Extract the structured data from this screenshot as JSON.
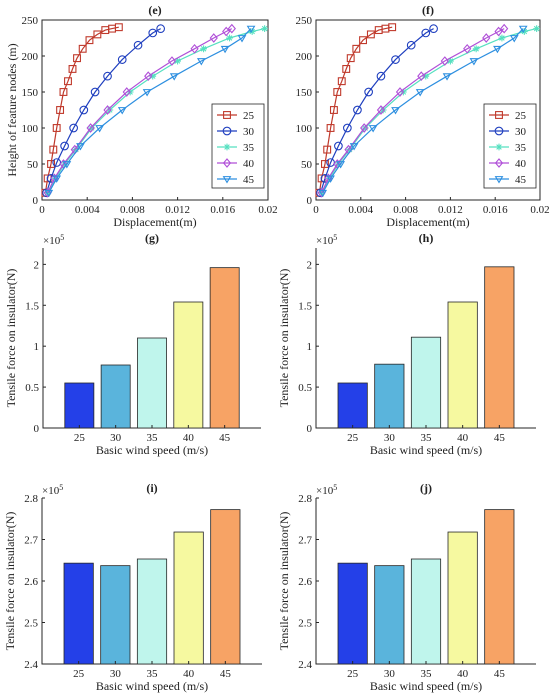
{
  "colors": {
    "axis": "#262626",
    "series": [
      "#c0392b",
      "#1f3fbf",
      "#56e0c0",
      "#b04fd8",
      "#2d8fe0"
    ],
    "bars": [
      "#2440e8",
      "#5ab4dc",
      "#bff5ec",
      "#f6f9a0",
      "#f7a365"
    ]
  },
  "markers": [
    "square",
    "circle",
    "asterisk",
    "diamond",
    "triangle-down"
  ],
  "chart_data": [
    {
      "panel": "e",
      "title": "(e)",
      "type": "line",
      "xlabel": "Displacement(m)",
      "ylabel": "Height of feature nodes (m)",
      "xlim": [
        0,
        0.02
      ],
      "ylim": [
        0,
        250
      ],
      "xticks": [
        0,
        0.004,
        0.008,
        0.012,
        0.016,
        0.02
      ],
      "xticklabels": [
        "0",
        "0.004",
        "0.008",
        "0.012",
        "0.016",
        "0.02"
      ],
      "yticks": [
        0,
        50,
        100,
        150,
        200,
        250
      ],
      "yticklabels": [
        "0",
        "50",
        "100",
        "150",
        "200",
        "250"
      ],
      "legend_position": "bottom-right",
      "series": [
        {
          "name": "25",
          "x": [
            0.0003,
            0.0005,
            0.0008,
            0.001,
            0.0013,
            0.0016,
            0.0019,
            0.0023,
            0.0027,
            0.0031,
            0.0036,
            0.0042,
            0.0049,
            0.0056,
            0.0062,
            0.0068
          ],
          "y": [
            10,
            30,
            50,
            70,
            100,
            125,
            150,
            165,
            182,
            197,
            210,
            222,
            230,
            236,
            238,
            240
          ]
        },
        {
          "name": "30",
          "x": [
            0.0004,
            0.0008,
            0.0013,
            0.002,
            0.0028,
            0.0037,
            0.0047,
            0.0058,
            0.0071,
            0.0085,
            0.0098,
            0.0105
          ],
          "y": [
            10,
            30,
            52,
            75,
            100,
            125,
            150,
            172,
            195,
            215,
            232,
            238
          ]
        },
        {
          "name": "35",
          "x": [
            0.0005,
            0.0012,
            0.002,
            0.003,
            0.0044,
            0.006,
            0.0078,
            0.0098,
            0.012,
            0.0143,
            0.0166,
            0.0186,
            0.0197
          ],
          "y": [
            10,
            30,
            50,
            70,
            100,
            125,
            150,
            172,
            193,
            210,
            225,
            234,
            238
          ]
        },
        {
          "name": "40",
          "x": [
            0.0005,
            0.0011,
            0.0019,
            0.0029,
            0.0043,
            0.0058,
            0.0075,
            0.0094,
            0.0115,
            0.0135,
            0.0152,
            0.0163,
            0.0168
          ],
          "y": [
            10,
            30,
            50,
            70,
            100,
            125,
            150,
            172,
            193,
            210,
            225,
            234,
            238
          ]
        },
        {
          "name": "45",
          "x": [
            0.0006,
            0.0013,
            0.0022,
            0.0034,
            0.0051,
            0.0071,
            0.0093,
            0.0117,
            0.0141,
            0.0162,
            0.0177,
            0.0185
          ],
          "y": [
            10,
            30,
            50,
            75,
            100,
            125,
            150,
            172,
            193,
            210,
            225,
            238
          ]
        }
      ]
    },
    {
      "panel": "f",
      "title": "(f)",
      "type": "line",
      "xlabel": "Displacement(m)",
      "ylabel": "",
      "xlim": [
        0,
        0.02
      ],
      "ylim": [
        0,
        250
      ],
      "xticks": [
        0,
        0.004,
        0.008,
        0.012,
        0.016,
        0.02
      ],
      "xticklabels": [
        "0",
        "0.004",
        "0.008",
        "0.012",
        "0.016",
        "0.02"
      ],
      "yticks": [
        0,
        50,
        100,
        150,
        200,
        250
      ],
      "yticklabels": [
        "0",
        "50",
        "100",
        "150",
        "200",
        "250"
      ],
      "legend_position": "bottom-right",
      "series": [
        {
          "name": "25",
          "x": [
            0.0003,
            0.0005,
            0.0008,
            0.001,
            0.0013,
            0.0016,
            0.0019,
            0.0023,
            0.0027,
            0.0031,
            0.0036,
            0.0042,
            0.0049,
            0.0056,
            0.0062,
            0.0068
          ],
          "y": [
            10,
            30,
            50,
            70,
            100,
            125,
            150,
            165,
            182,
            197,
            210,
            222,
            230,
            236,
            238,
            240
          ]
        },
        {
          "name": "30",
          "x": [
            0.0004,
            0.0008,
            0.0013,
            0.002,
            0.0028,
            0.0037,
            0.0047,
            0.0058,
            0.0071,
            0.0085,
            0.0098,
            0.0105
          ],
          "y": [
            10,
            30,
            52,
            75,
            100,
            125,
            150,
            172,
            195,
            215,
            232,
            238
          ]
        },
        {
          "name": "35",
          "x": [
            0.0005,
            0.0012,
            0.002,
            0.003,
            0.0044,
            0.006,
            0.0078,
            0.0098,
            0.012,
            0.0143,
            0.0166,
            0.0186,
            0.0197
          ],
          "y": [
            10,
            30,
            50,
            70,
            100,
            125,
            150,
            172,
            193,
            210,
            225,
            234,
            238
          ]
        },
        {
          "name": "40",
          "x": [
            0.0005,
            0.0011,
            0.0019,
            0.0029,
            0.0043,
            0.0058,
            0.0075,
            0.0094,
            0.0115,
            0.0135,
            0.0152,
            0.0163,
            0.0168
          ],
          "y": [
            10,
            30,
            50,
            70,
            100,
            125,
            150,
            172,
            193,
            210,
            225,
            234,
            238
          ]
        },
        {
          "name": "45",
          "x": [
            0.0006,
            0.0013,
            0.0022,
            0.0034,
            0.0051,
            0.0071,
            0.0093,
            0.0117,
            0.0141,
            0.0162,
            0.0177,
            0.0185
          ],
          "y": [
            10,
            30,
            50,
            75,
            100,
            125,
            150,
            172,
            193,
            210,
            225,
            238
          ]
        }
      ]
    },
    {
      "panel": "g",
      "title": "(g)",
      "type": "bar",
      "categories": [
        "25",
        "30",
        "35",
        "40",
        "45"
      ],
      "values": [
        55000,
        77000,
        110000,
        154000,
        196000
      ],
      "exponent_label": "×10",
      "exponent_power": "5",
      "xlabel": "Basic wind speed (m/s)",
      "ylabel": "Tensile force on insulator(N)",
      "ylim": [
        0,
        220000
      ],
      "yticks": [
        0,
        50000,
        100000,
        150000,
        200000
      ],
      "yticklabels": [
        "0",
        "0.5",
        "1",
        "1.5",
        "2"
      ]
    },
    {
      "panel": "h",
      "title": "(h)",
      "type": "bar",
      "categories": [
        "25",
        "30",
        "35",
        "40",
        "45"
      ],
      "values": [
        55000,
        78000,
        111000,
        154000,
        197000
      ],
      "exponent_label": "×10",
      "exponent_power": "5",
      "xlabel": "Basic wind speed (m/s)",
      "ylabel": "Tensile force on insulator(N)",
      "ylim": [
        0,
        220000
      ],
      "yticks": [
        0,
        50000,
        100000,
        150000,
        200000
      ],
      "yticklabels": [
        "0",
        "0.5",
        "1",
        "1.5",
        "2"
      ]
    },
    {
      "panel": "i",
      "title": "(i)",
      "type": "bar",
      "categories": [
        "25",
        "30",
        "35",
        "40",
        "45"
      ],
      "values": [
        264300,
        263700,
        265300,
        271800,
        277200
      ],
      "exponent_label": "×10",
      "exponent_power": "5",
      "xlabel": "Basic wind speed (m/s)",
      "ylabel": "Tensile force on insulator(N)",
      "ylim": [
        240000,
        280000
      ],
      "yticks": [
        240000,
        250000,
        260000,
        270000,
        280000
      ],
      "yticklabels": [
        "2.4",
        "2.5",
        "2.6",
        "2.7",
        "2.8"
      ]
    },
    {
      "panel": "j",
      "title": "(j)",
      "type": "bar",
      "categories": [
        "25",
        "30",
        "35",
        "40",
        "45"
      ],
      "values": [
        264300,
        263700,
        265300,
        271800,
        277200
      ],
      "exponent_label": "×10",
      "exponent_power": "5",
      "xlabel": "Basic wind speed (m/s)",
      "ylabel": "Tensile force on insulator(N)",
      "ylim": [
        240000,
        280000
      ],
      "yticks": [
        240000,
        250000,
        260000,
        270000,
        280000
      ],
      "yticklabels": [
        "2.4",
        "2.5",
        "2.6",
        "2.7",
        "2.8"
      ]
    }
  ]
}
